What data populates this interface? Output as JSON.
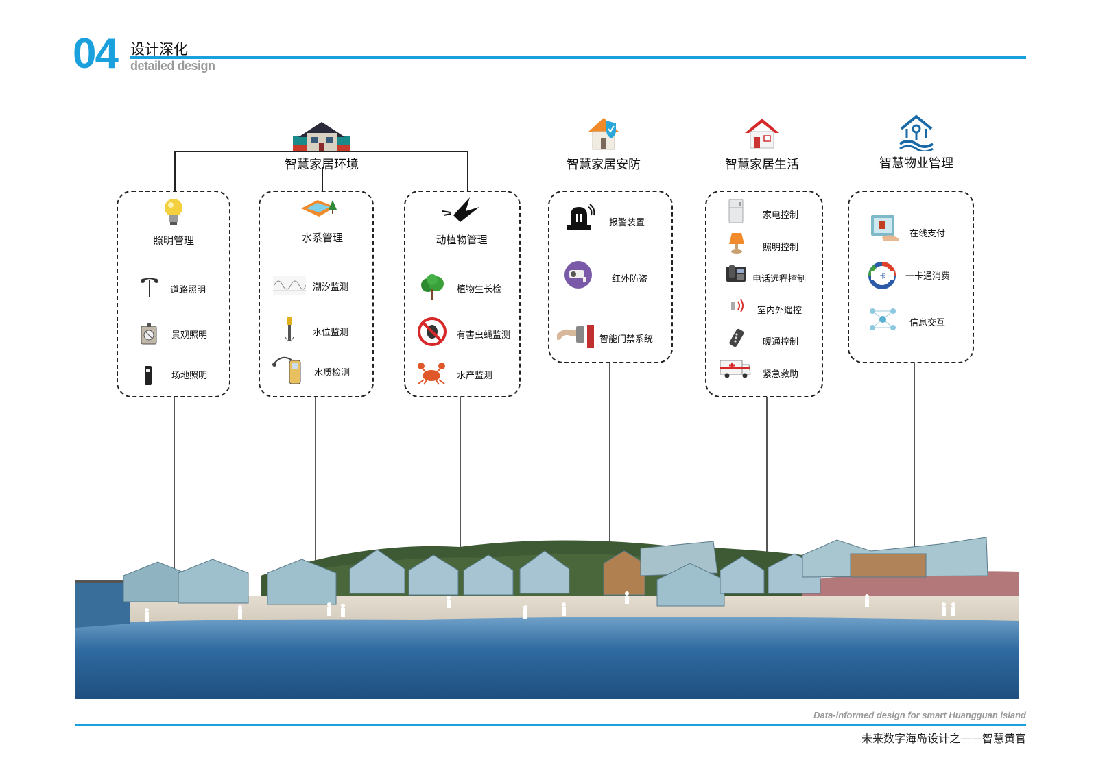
{
  "header": {
    "section_number": "04",
    "title": "设计深化",
    "subtitle": "detailed design"
  },
  "footer": {
    "english": "Data-informed design for smart Huangguan island",
    "chinese": "未来数字海岛设计之——智慧黄官"
  },
  "categories": [
    {
      "title": "智慧家居环境",
      "icon": "house-icon",
      "groups": [
        {
          "heading": "照明管理",
          "icon": "light-bulb-icon",
          "items": [
            {
              "label": "道路照明",
              "icon": "street-lamp-icon"
            },
            {
              "label": "景观照明",
              "icon": "landscape-light-icon"
            },
            {
              "label": "场地照明",
              "icon": "bollard-light-icon"
            }
          ]
        },
        {
          "heading": "水系管理",
          "icon": "pool-icon",
          "items": [
            {
              "label": "潮汐监测",
              "icon": "wave-chart-icon"
            },
            {
              "label": "水位监测",
              "icon": "water-gauge-icon"
            },
            {
              "label": "水质检测",
              "icon": "water-quality-meter-icon"
            }
          ]
        },
        {
          "heading": "动植物管理",
          "icon": "bird-icon",
          "items": [
            {
              "label": "植物生长检",
              "icon": "tree-icon"
            },
            {
              "label": "有害虫蝇监测",
              "icon": "no-insect-icon"
            },
            {
              "label": "水产监测",
              "icon": "crab-icon"
            }
          ]
        }
      ]
    },
    {
      "title": "智慧家居安防",
      "icon": "shield-house-icon",
      "items": [
        {
          "label": "报警装置",
          "icon": "alarm-light-icon"
        },
        {
          "label": "红外防盗",
          "icon": "camera-icon"
        },
        {
          "label": "智能门禁系统",
          "icon": "door-access-icon"
        }
      ]
    },
    {
      "title": "智慧家居生活",
      "icon": "red-house-icon",
      "items": [
        {
          "label": "家电控制",
          "icon": "fridge-icon"
        },
        {
          "label": "照明控制",
          "icon": "lamp-icon"
        },
        {
          "label": "电话远程控制",
          "icon": "phone-icon"
        },
        {
          "label": "室内外遥控",
          "icon": "remote-signal-icon"
        },
        {
          "label": "暖通控制",
          "icon": "remote-control-icon"
        },
        {
          "label": "紧急救助",
          "icon": "ambulance-icon"
        }
      ]
    },
    {
      "title": "智慧物业管理",
      "icon": "property-icon",
      "items": [
        {
          "label": "在线支付",
          "icon": "tablet-pay-icon"
        },
        {
          "label": "一卡通消费",
          "icon": "card-icon"
        },
        {
          "label": "信息交互",
          "icon": "network-icon"
        }
      ]
    }
  ],
  "colors": {
    "accent": "#1aa0dc",
    "sea": "#2d6a9e",
    "sand": "#e8e2d6"
  }
}
